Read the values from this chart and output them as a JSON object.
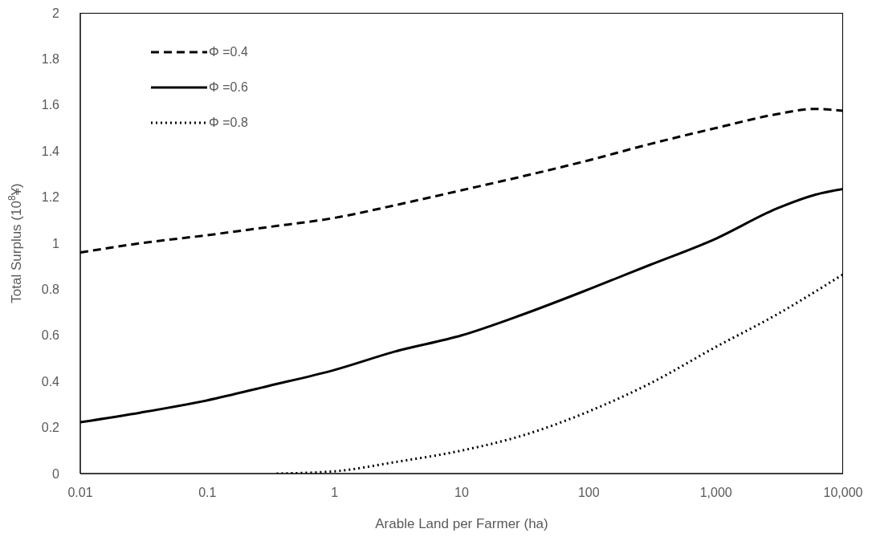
{
  "chart_data": {
    "type": "line",
    "xlabel": "Arable Land per Farmer (ha)",
    "ylabel": "Total Surplus (10$^{8}$¥)",
    "log": "x",
    "xlim": [
      0.01,
      10000
    ],
    "xticks": [
      0.01,
      0.1,
      1,
      10,
      100,
      {
        "value": 1000,
        "label": "1,000"
      },
      {
        "value": 10000,
        "label": "10,000"
      }
    ],
    "ylim": [
      0,
      2
    ],
    "yticks": [
      0,
      0.2,
      0.4,
      0.6,
      0.8,
      1,
      1.2,
      1.4,
      1.6,
      1.8,
      2
    ],
    "grid": false,
    "legend": "top left",
    "marker": "none",
    "series": [
      {
        "name": "Φ =0.4",
        "color": "#000000",
        "line_style": "dashed",
        "x": [
          0.01,
          0.03,
          0.1,
          0.3,
          1,
          3,
          10,
          30,
          100,
          300,
          1000,
          3000,
          6000,
          10000
        ],
        "values": [
          0.96,
          1.0,
          1.035,
          1.07,
          1.11,
          1.165,
          1.23,
          1.29,
          1.36,
          1.43,
          1.5,
          1.56,
          1.583,
          1.575
        ]
      },
      {
        "name": "Φ =0.6",
        "color": "#000000",
        "line_style": "solid",
        "x": [
          0.01,
          0.03,
          0.1,
          0.3,
          1,
          3,
          10,
          30,
          100,
          300,
          1000,
          3000,
          6000,
          10000
        ],
        "values": [
          0.223,
          0.265,
          0.318,
          0.38,
          0.45,
          0.53,
          0.6,
          0.69,
          0.8,
          0.905,
          1.02,
          1.15,
          1.21,
          1.235
        ]
      },
      {
        "name": "Φ =0.8",
        "color": "#000000",
        "line_style": "dotted",
        "x": [
          0.35,
          1,
          3,
          10,
          30,
          100,
          300,
          1000,
          3000,
          10000
        ],
        "values": [
          0,
          0.01,
          0.05,
          0.1,
          0.165,
          0.27,
          0.39,
          0.55,
          0.69,
          0.865
        ]
      }
    ]
  }
}
